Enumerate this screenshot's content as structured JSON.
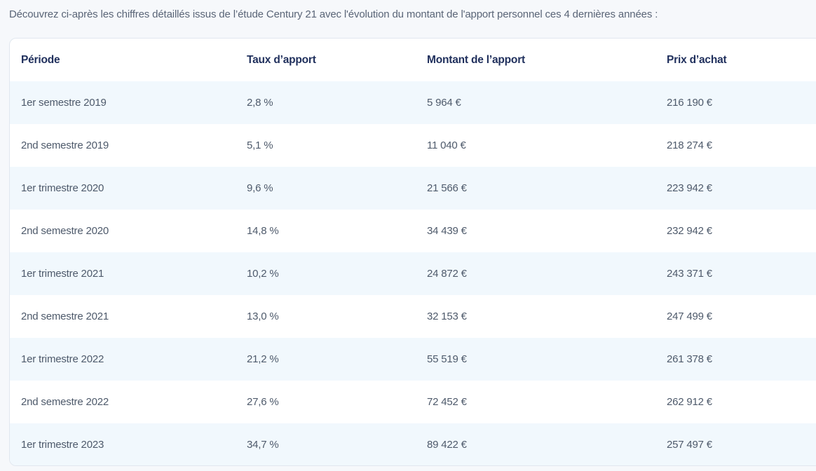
{
  "intro_text": "Découvrez ci-après les chiffres détaillés issus de l’étude Century 21 avec l'évolution du montant de l'apport personnel ces 4 dernières années :",
  "table": {
    "headers": [
      "Période",
      "Taux d’apport",
      "Montant de l’apport",
      "Prix d’achat"
    ],
    "rows": [
      [
        "1er semestre 2019",
        "2,8 %",
        "5 964 €",
        "216 190 €"
      ],
      [
        "2nd semestre 2019",
        "5,1 %",
        "11 040 €",
        "218 274 €"
      ],
      [
        "1er trimestre 2020",
        "9,6 %",
        "21 566 €",
        "223 942 €"
      ],
      [
        "2nd semestre 2020",
        "14,8 %",
        "34 439 €",
        "232 942 €"
      ],
      [
        "1er trimestre 2021",
        "10,2 %",
        "24 872 €",
        "243 371 €"
      ],
      [
        "2nd semestre 2021",
        "13,0 %",
        "32 153 €",
        "247 499 €"
      ],
      [
        "1er trimestre 2022",
        "21,2 %",
        "55 519 €",
        "261 378 €"
      ],
      [
        "2nd semestre 2022",
        "27,6 %",
        "72 452 €",
        "262 912 €"
      ],
      [
        "1er trimestre 2023",
        "34,7 %",
        "89 422 €",
        "257 497 €"
      ]
    ]
  },
  "colors": {
    "header_text": "#1f2f5c",
    "body_text": "#4e5a6b",
    "alt_row_bg": "#f1f8fd",
    "border": "#e1e7ef"
  }
}
